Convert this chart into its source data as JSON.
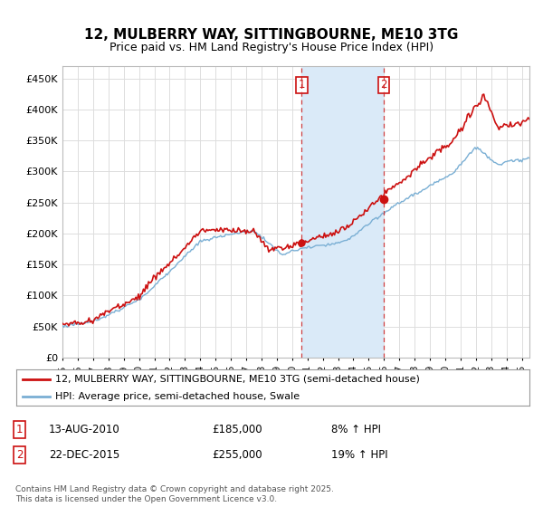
{
  "title": "12, MULBERRY WAY, SITTINGBOURNE, ME10 3TG",
  "subtitle": "Price paid vs. HM Land Registry's House Price Index (HPI)",
  "yticks": [
    0,
    50000,
    100000,
    150000,
    200000,
    250000,
    300000,
    350000,
    400000,
    450000
  ],
  "ylim": [
    0,
    470000
  ],
  "xlim_start": 1995.0,
  "xlim_end": 2025.5,
  "purchase1_date": 2010.617,
  "purchase1_price": 185000,
  "purchase1_label": "1",
  "purchase2_date": 2015.978,
  "purchase2_price": 255000,
  "purchase2_label": "2",
  "shade_color": "#daeaf8",
  "hpi_line_color": "#7aafd4",
  "property_color": "#cc1111",
  "legend_box_label1": "12, MULBERRY WAY, SITTINGBOURNE, ME10 3TG (semi-detached house)",
  "legend_box_label2": "HPI: Average price, semi-detached house, Swale",
  "annotation1_date": "13-AUG-2010",
  "annotation1_price": "£185,000",
  "annotation1_pct": "8% ↑ HPI",
  "annotation2_date": "22-DEC-2015",
  "annotation2_price": "£255,000",
  "annotation2_pct": "19% ↑ HPI",
  "footer": "Contains HM Land Registry data © Crown copyright and database right 2025.\nThis data is licensed under the Open Government Licence v3.0.",
  "background_color": "#ffffff",
  "plot_bg_color": "#ffffff",
  "grid_color": "#dddddd",
  "title_fontsize": 11,
  "subtitle_fontsize": 9
}
